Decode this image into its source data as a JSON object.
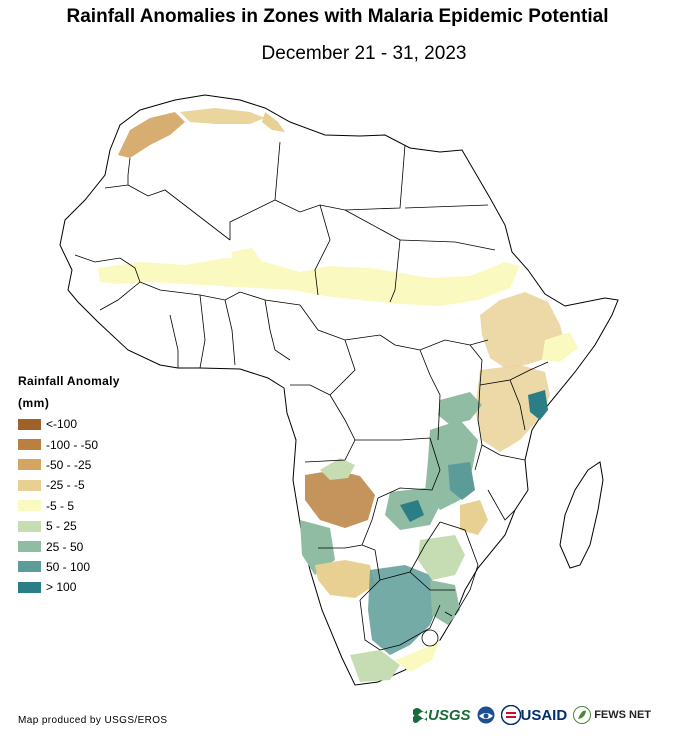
{
  "title": "Rainfall Anomalies in Zones with Malaria Epidemic Potential",
  "subtitle": "December 21 - 31, 2023",
  "legend": {
    "title": "Rainfall Anomaly",
    "unit": "(mm)",
    "items": [
      {
        "label": "<-100",
        "color": "#a0602a"
      },
      {
        "label": "-100 - -50",
        "color": "#bb8040"
      },
      {
        "label": "-50 - -25",
        "color": "#d4a462"
      },
      {
        "label": "-25 - -5",
        "color": "#e8d092"
      },
      {
        "label": "-5 - 5",
        "color": "#fafac0"
      },
      {
        "label": "5 - 25",
        "color": "#c6dcb2"
      },
      {
        "label": "25 - 50",
        "color": "#8fbca2"
      },
      {
        "label": "50 - 100",
        "color": "#5c9c98"
      },
      {
        "label": "> 100",
        "color": "#2b7d86"
      }
    ]
  },
  "credit": "Map produced by USGS/EROS",
  "logos": {
    "usgs": "USGS",
    "usaid": "USAID",
    "fews": "FEWS NET"
  }
}
